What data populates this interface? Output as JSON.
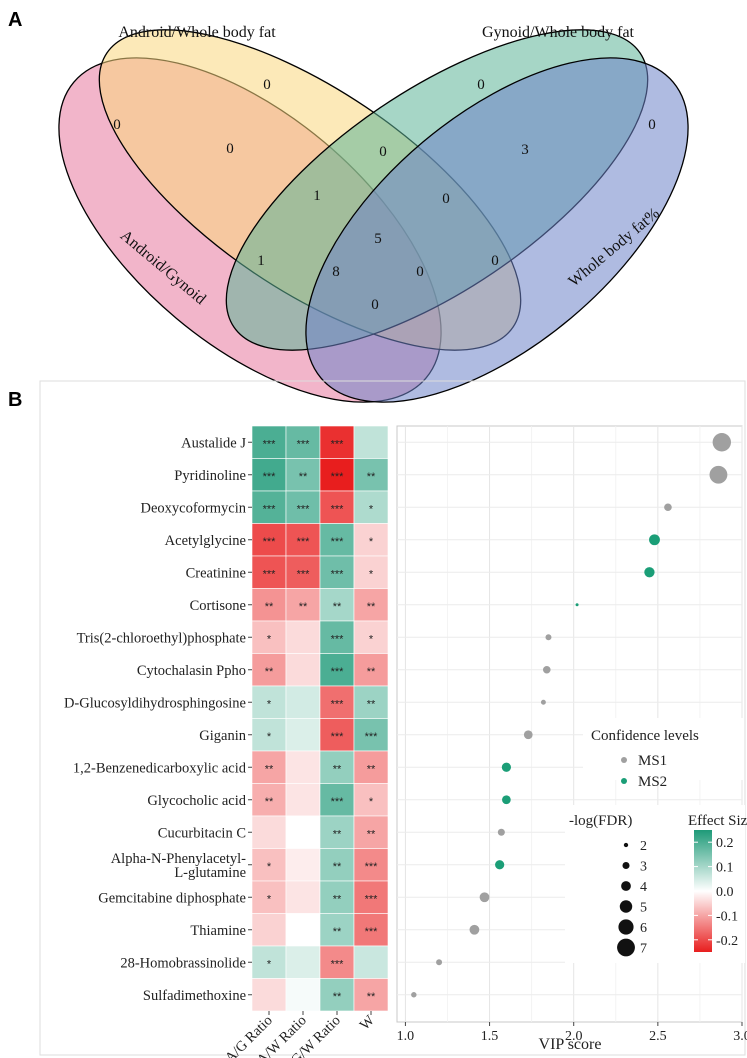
{
  "panel_a": {
    "label": "A",
    "set_labels": {
      "android_whole": "Android/Whole body fat",
      "gynoid_whole": "Gynoid/Whole body fat",
      "android_gynoid": "Android/Gynoid",
      "whole_pct": "Whole body fat%"
    },
    "colors": {
      "android_gynoid": "#e8799f",
      "android_whole": "#f9d77e",
      "gynoid_whole": "#5db597",
      "whole_pct": "#6e84c8"
    },
    "counts": {
      "only_ag": "0",
      "only_aw": "0",
      "only_gw": "0",
      "only_wp": "0",
      "ag_aw": "0",
      "aw_gw": "0",
      "gw_wp": "3",
      "ag_aw_gw": "1",
      "aw_gw_wp": "0",
      "all_four": "5",
      "ag_gw": "1",
      "aw_wp": "0",
      "ag_gw_wp": "8",
      "ag_aw_wp": "0",
      "ag_wp": "0"
    }
  },
  "panel_b": {
    "label": "B",
    "legend": {
      "confidence_title": "Confidence levels",
      "ms1": "MS1",
      "ms2": "MS2",
      "ms1_color": "#a0a0a0",
      "ms2_color": "#1b9e77",
      "fdr_title": "-log(FDR)",
      "fdr_values": [
        "2",
        "3",
        "4",
        "5",
        "6",
        "7"
      ],
      "effect_title": "Effect Size",
      "effect_ticks": [
        "0.2",
        "0.1",
        "0.0",
        "-0.1",
        "-0.2"
      ]
    }
  },
  "chart_data": {
    "type": "heatmap+scatter",
    "heatmap": {
      "columns": [
        "A/G Ratio",
        "A/W Ratio",
        "G/W Ratio",
        "W"
      ],
      "rows": [
        "Austalide J",
        "Pyridinoline",
        "Deoxycoformycin",
        "Acetylglycine",
        "Creatinine",
        "Cortisone",
        "Tris(2-chloroethyl)phosphate",
        "Cytochalasin Ppho",
        "D-Glucosyldihydrosphingosine",
        "Giganin",
        "1,2-Benzenedicarboxylic acid",
        "Glycocholic acid",
        "Cucurbitacin C",
        "Alpha-N-Phenylacetyl-L-glutamine",
        "Gemcitabine diphosphate",
        "Thiamine",
        "28-Homobrassinolide",
        "Sulfadimethoxine"
      ],
      "effect_size": [
        [
          0.2,
          0.17,
          -0.23,
          0.07
        ],
        [
          0.21,
          0.15,
          -0.25,
          0.15
        ],
        [
          0.19,
          0.16,
          -0.19,
          0.09
        ],
        [
          -0.2,
          -0.19,
          0.17,
          -0.05
        ],
        [
          -0.19,
          -0.18,
          0.16,
          -0.05
        ],
        [
          -0.12,
          -0.1,
          0.1,
          -0.1
        ],
        [
          -0.07,
          -0.04,
          0.17,
          -0.05
        ],
        [
          -0.11,
          -0.04,
          0.2,
          -0.11
        ],
        [
          0.07,
          0.05,
          -0.16,
          0.11
        ],
        [
          0.07,
          0.04,
          -0.18,
          0.15
        ],
        [
          -0.1,
          -0.03,
          0.12,
          -0.11
        ],
        [
          -0.09,
          -0.03,
          0.17,
          -0.07
        ],
        [
          -0.04,
          0.0,
          0.11,
          -0.1
        ],
        [
          -0.07,
          -0.02,
          0.12,
          -0.13
        ],
        [
          -0.07,
          -0.03,
          0.12,
          -0.15
        ],
        [
          -0.05,
          0.0,
          0.11,
          -0.15
        ],
        [
          0.07,
          0.04,
          -0.13,
          0.06
        ],
        [
          -0.04,
          0.01,
          0.12,
          -0.1
        ]
      ],
      "significance": [
        [
          "***",
          "***",
          "***",
          ""
        ],
        [
          "***",
          "**",
          "***",
          "**"
        ],
        [
          "***",
          "***",
          "***",
          "*"
        ],
        [
          "***",
          "***",
          "***",
          "*"
        ],
        [
          "***",
          "***",
          "***",
          "*"
        ],
        [
          "**",
          "**",
          "**",
          "**"
        ],
        [
          "*",
          "",
          "***",
          "*"
        ],
        [
          "**",
          "",
          "***",
          "**"
        ],
        [
          "*",
          "",
          "***",
          "**"
        ],
        [
          "*",
          "",
          "***",
          "***"
        ],
        [
          "**",
          "",
          "**",
          "**"
        ],
        [
          "**",
          "",
          "***",
          "*"
        ],
        [
          "",
          "",
          "**",
          "**"
        ],
        [
          "*",
          "",
          "**",
          "***"
        ],
        [
          "*",
          "",
          "**",
          "***"
        ],
        [
          "",
          "",
          "**",
          "***"
        ],
        [
          "*",
          "",
          "***",
          ""
        ],
        [
          "",
          "",
          "**",
          "**"
        ]
      ],
      "color_range": [
        -0.25,
        0.25
      ]
    },
    "vip": {
      "xlabel": "VIP score",
      "xlim": [
        0.95,
        3.0
      ],
      "xticks": [
        "1.0",
        "1.5",
        "2.0",
        "2.5",
        "3.0"
      ],
      "xtick_values": [
        1.0,
        1.5,
        2.0,
        2.5,
        3.0
      ],
      "scores": [
        2.88,
        2.86,
        2.56,
        2.48,
        2.45,
        2.02,
        1.85,
        1.84,
        1.82,
        1.73,
        1.6,
        1.6,
        1.57,
        1.56,
        1.47,
        1.41,
        1.2,
        1.05
      ],
      "confidence": [
        "MS1",
        "MS1",
        "MS1",
        "MS2",
        "MS2",
        "MS2",
        "MS1",
        "MS1",
        "MS1",
        "MS1",
        "MS2",
        "MS2",
        "MS1",
        "MS2",
        "MS1",
        "MS1",
        "MS1",
        "MS1"
      ],
      "neglog_fdr": [
        7.2,
        7.0,
        3.2,
        4.4,
        4.2,
        1.5,
        2.6,
        3.2,
        2.2,
        3.6,
        3.8,
        3.6,
        3.0,
        3.8,
        4.0,
        4.0,
        2.6,
        2.4
      ]
    }
  }
}
